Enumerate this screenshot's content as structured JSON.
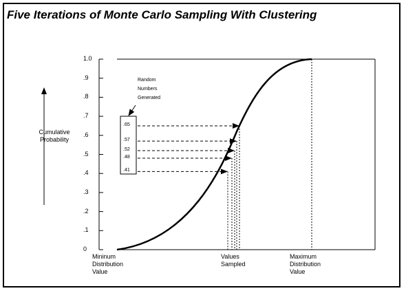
{
  "title": "Five Iterations of Monte Carlo Sampling With Clustering",
  "y_axis": {
    "label_lines": [
      "Cumulative",
      "Probability"
    ],
    "ticks": [
      "1.0",
      ".9",
      ".8",
      ".7",
      ".6",
      ".5",
      ".4",
      ".3",
      ".2",
      ".1",
      "0"
    ]
  },
  "x_labels": {
    "min": [
      "Mininum",
      "Distribution",
      "Value"
    ],
    "sampled": [
      "Values",
      "Sampled"
    ],
    "max": [
      "Maximum",
      "Distribution",
      "Value"
    ]
  },
  "random_label": [
    "Random",
    "Numbers",
    "Generated"
  ],
  "random_numbers": [
    {
      "label": ".65",
      "value": 0.65
    },
    {
      "label": ".57",
      "value": 0.57
    },
    {
      "label": ".52",
      "value": 0.52
    },
    {
      "label": ".48",
      "value": 0.48
    },
    {
      "label": ".41",
      "value": 0.41
    }
  ]
}
